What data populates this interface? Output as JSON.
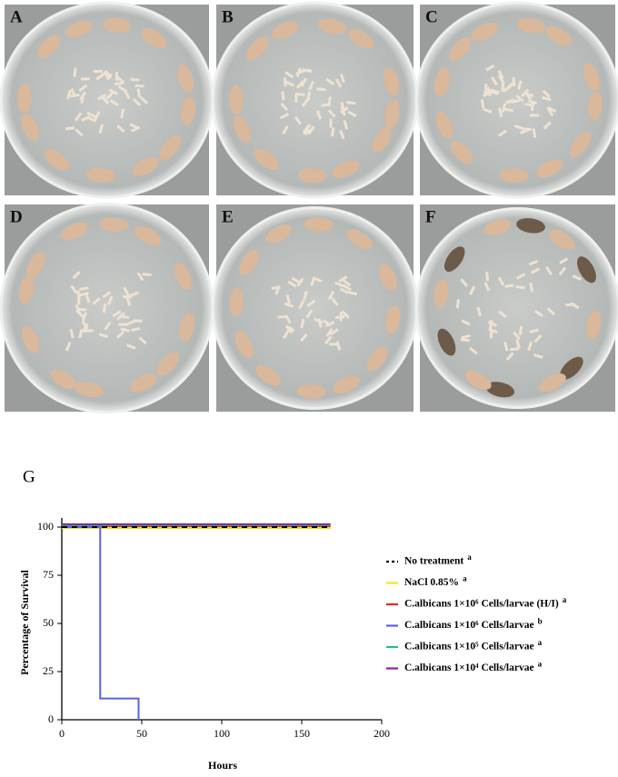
{
  "panels": [
    "A",
    "B",
    "C",
    "D",
    "E",
    "F"
  ],
  "chart_data": {
    "type": "step",
    "panel_label": "G",
    "xlabel": "Hours",
    "ylabel": "Percentage of Survival",
    "xlim": [
      0,
      200
    ],
    "xticks": [
      0,
      50,
      100,
      150,
      200
    ],
    "ylim": [
      0,
      100
    ],
    "yticks": [
      0,
      25,
      50,
      75,
      100
    ],
    "series": [
      {
        "name": "No treatment",
        "sig": "a",
        "color": "#000000",
        "dashed": true,
        "x": [
          0,
          168
        ],
        "values": [
          100,
          100
        ]
      },
      {
        "name": "NaCl 0.85%",
        "sig": "a",
        "color": "#f2e41c",
        "x": [
          0,
          168
        ],
        "values": [
          99.5,
          99.5
        ]
      },
      {
        "name": "C.albicans 1×10⁶ Cells/larvae (H/I)",
        "sig": "a",
        "color": "#e8251c",
        "x": [
          0,
          168
        ],
        "values": [
          100.5,
          100.5
        ]
      },
      {
        "name": "C.albicans 1×10⁶ Cells/larvae",
        "sig": "b",
        "color": "#5b5fe8",
        "x": [
          0,
          24,
          48
        ],
        "values": [
          100,
          11,
          0
        ]
      },
      {
        "name": "C.albicans 1×10⁵ Cells/larvae",
        "sig": "a",
        "color": "#1fbf8f",
        "x": [
          0,
          168
        ],
        "values": [
          101,
          101
        ]
      },
      {
        "name": "C.albicans 1×10⁴ Cells/larvae",
        "sig": "a",
        "color": "#8e1fa0",
        "x": [
          0,
          168
        ],
        "values": [
          101.5,
          101.5
        ]
      }
    ]
  }
}
